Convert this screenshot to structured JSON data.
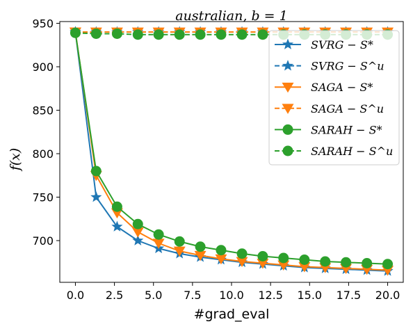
{
  "chart_data": {
    "type": "line",
    "title": "australian, b = 1",
    "xlabel": "#grad_eval",
    "ylabel": "f(x)",
    "xlim": [
      -1.0,
      21.0
    ],
    "ylim": [
      652,
      952
    ],
    "xticks": [
      "0.0",
      "2.5",
      "5.0",
      "7.5",
      "10.0",
      "12.5",
      "15.0",
      "17.5",
      "20.0"
    ],
    "yticks": [
      "700",
      "750",
      "800",
      "850",
      "900",
      "950"
    ],
    "grid": false,
    "legend_position": "top-right",
    "x": [
      0.0,
      1.33,
      2.67,
      4.0,
      5.33,
      6.67,
      8.0,
      9.33,
      10.67,
      12.0,
      13.33,
      14.67,
      16.0,
      17.33,
      18.67,
      20.0
    ],
    "series": [
      {
        "name": "SVRG − S*",
        "color": "#1f77b4",
        "linestyle": "solid",
        "marker": "star",
        "values": [
          940,
          750,
          716,
          700,
          691,
          685,
          681,
          678,
          675,
          673,
          671,
          669,
          668,
          667,
          666,
          665
        ]
      },
      {
        "name": "SVRG − S^u",
        "color": "#1f77b4",
        "linestyle": "dashed",
        "marker": "star",
        "values": [
          940,
          940,
          940,
          940,
          940,
          940,
          940,
          940,
          940,
          940,
          940,
          940,
          940,
          940,
          940,
          940
        ]
      },
      {
        "name": "SAGA − S*",
        "color": "#ff7f0e",
        "linestyle": "solid",
        "marker": "triangle-down",
        "values": [
          940,
          775,
          732,
          710,
          697,
          688,
          683,
          679,
          676,
          674,
          672,
          670,
          669,
          668,
          667,
          666
        ]
      },
      {
        "name": "SAGA − S^u",
        "color": "#ff7f0e",
        "linestyle": "dashed",
        "marker": "triangle-down",
        "values": [
          940,
          940,
          940,
          940,
          940,
          940,
          940,
          940,
          940,
          940,
          940,
          940,
          940,
          940,
          940,
          940
        ]
      },
      {
        "name": "SARAH − S*",
        "color": "#2ca02c",
        "linestyle": "solid",
        "marker": "circle",
        "values": [
          939,
          780,
          739,
          719,
          707,
          699,
          693,
          689,
          685,
          682,
          680,
          678,
          676,
          675,
          674,
          673
        ]
      },
      {
        "name": "SARAH − S^u",
        "color": "#2ca02c",
        "linestyle": "dashed",
        "marker": "circle",
        "values": [
          939,
          938,
          938,
          937,
          937,
          937,
          937,
          937,
          937,
          937,
          937,
          937,
          937,
          937,
          937,
          937
        ]
      }
    ]
  }
}
